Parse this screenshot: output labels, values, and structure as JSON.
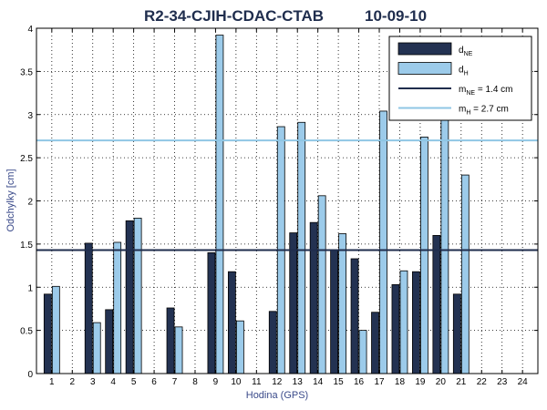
{
  "chart_data": {
    "type": "bar",
    "title": "R2-34-CJIH-CDAC-CTAB",
    "date": "10-09-10",
    "xlabel": "Hodina (GPS)",
    "ylabel": "Odchylky [cm]",
    "ylim": [
      0,
      4
    ],
    "yticks": [
      "0",
      "0.5",
      "1",
      "1.5",
      "2",
      "2.5",
      "3",
      "3.5",
      "4"
    ],
    "grid": true,
    "legend_position": "top-right",
    "categories": [
      "1",
      "2",
      "3",
      "4",
      "5",
      "6",
      "7",
      "8",
      "9",
      "10",
      "11",
      "12",
      "13",
      "14",
      "15",
      "16",
      "17",
      "18",
      "19",
      "20",
      "21",
      "22",
      "23",
      "24"
    ],
    "series": [
      {
        "key": "d_NE",
        "legend_main": "d",
        "legend_sub": "NE",
        "color": "#233252",
        "values": [
          0.92,
          null,
          1.51,
          0.74,
          1.77,
          null,
          0.76,
          null,
          1.4,
          1.18,
          null,
          0.72,
          1.63,
          1.75,
          1.43,
          1.33,
          0.71,
          1.03,
          1.18,
          1.6,
          0.92,
          null,
          null,
          null
        ]
      },
      {
        "key": "d_H",
        "legend_main": "d",
        "legend_sub": "H",
        "color": "#9ccbea",
        "values": [
          1.01,
          null,
          0.59,
          1.52,
          1.8,
          null,
          0.54,
          null,
          3.92,
          0.61,
          null,
          2.86,
          2.91,
          2.06,
          1.62,
          0.5,
          3.04,
          1.19,
          2.74,
          2.98,
          2.3,
          null,
          null,
          null
        ]
      }
    ],
    "reference_lines": [
      {
        "key": "m_NE",
        "legend_main": "m",
        "legend_sub": "NE",
        "legend_suffix": " = 1.4 cm",
        "value": 1.43,
        "color": "#1f2d4d"
      },
      {
        "key": "m_H",
        "legend_main": "m",
        "legend_sub": "H",
        "legend_suffix": " = 2.7 cm",
        "value": 2.7,
        "color": "#8fc6e4"
      }
    ]
  }
}
